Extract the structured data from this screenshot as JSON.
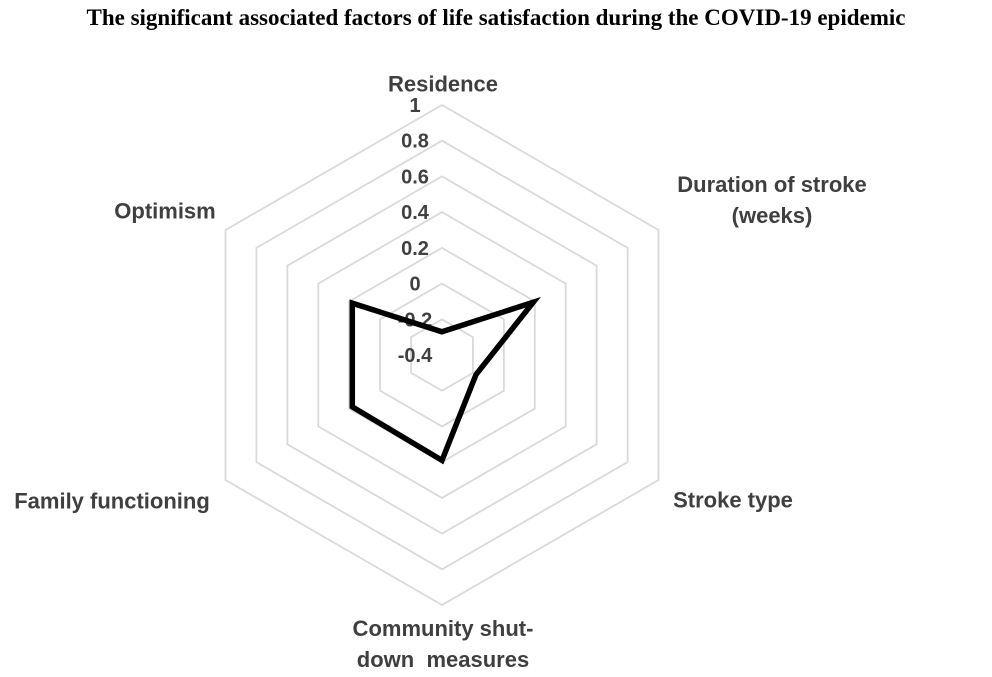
{
  "chart_data": {
    "type": "radar",
    "title": "The significant associated factors of life satisfaction during the COVID-19 epidemic",
    "categories": [
      "Residence",
      "Duration of stroke\n(weeks)",
      "Stroke type",
      "Community shut-\ndown  measures",
      "Family functioning",
      "Optimism"
    ],
    "values": [
      -0.27,
      0.19,
      -0.18,
      0.19,
      0.18,
      0.18
    ],
    "axis_min": -0.4,
    "axis_max": 1.0,
    "tick_step": 0.2,
    "tick_values": [
      1,
      0.8,
      0.6,
      0.4,
      0.2,
      0,
      -0.2,
      -0.4
    ],
    "tick_labels": [
      "1",
      "0.8",
      "0.6",
      "0.4",
      "0.2",
      "0",
      "-0.2",
      "-0.4"
    ],
    "grid_shape": "hexagon",
    "grid_on": true,
    "legend": "none",
    "colors": {
      "grid_line": "#d9d9d9",
      "series_line": "#000000",
      "tick_text": "#404040",
      "axis_label_text": "#3f3f3f",
      "background": "#ffffff"
    }
  }
}
